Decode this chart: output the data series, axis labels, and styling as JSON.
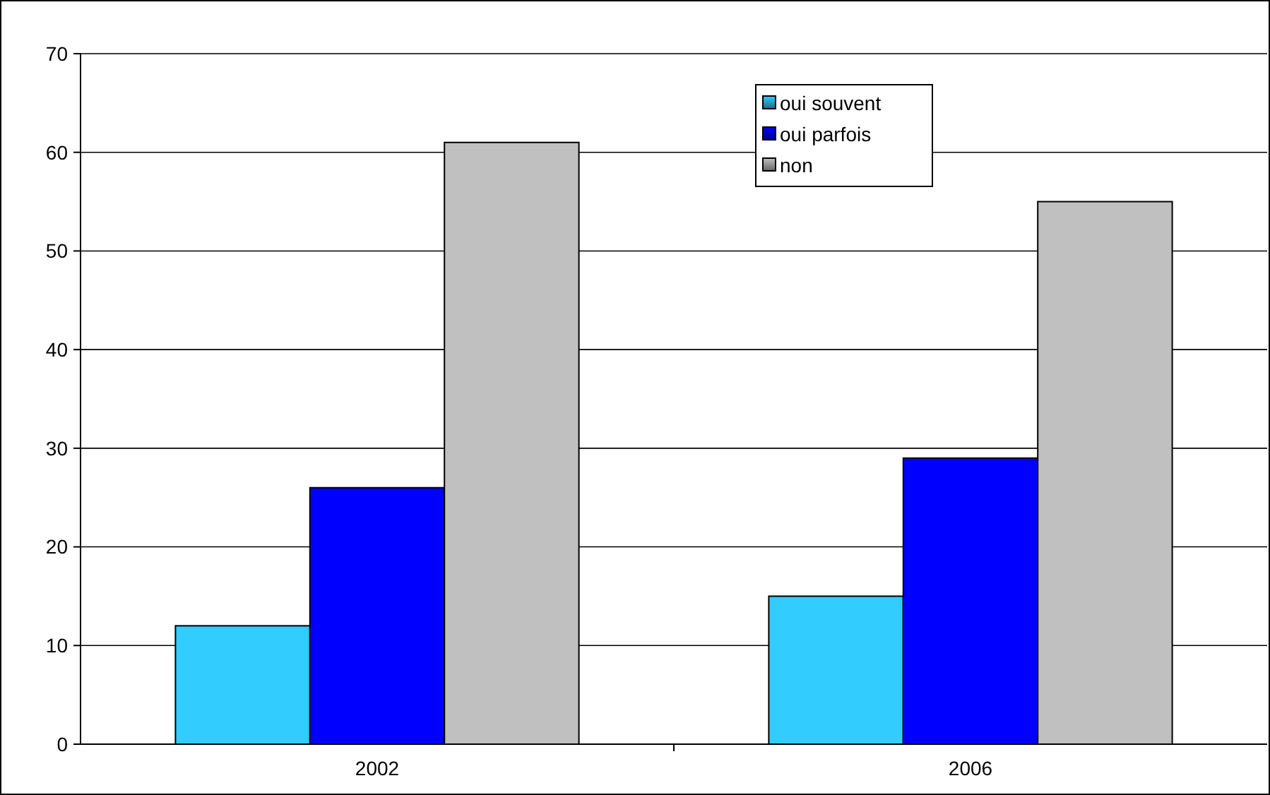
{
  "chart_data": {
    "type": "bar",
    "categories": [
      "2002",
      "2006"
    ],
    "series": [
      {
        "name": "oui souvent",
        "color": "#33ccff",
        "values": [
          12,
          15
        ]
      },
      {
        "name": "oui parfois",
        "color": "#0000ff",
        "values": [
          26,
          29
        ]
      },
      {
        "name": "non",
        "color": "#c0c0c0",
        "values": [
          61,
          55
        ]
      }
    ],
    "ylim": [
      0,
      70
    ],
    "yticks": [
      0,
      10,
      20,
      30,
      40,
      50,
      60,
      70
    ],
    "grid": "y",
    "legend": "top"
  }
}
